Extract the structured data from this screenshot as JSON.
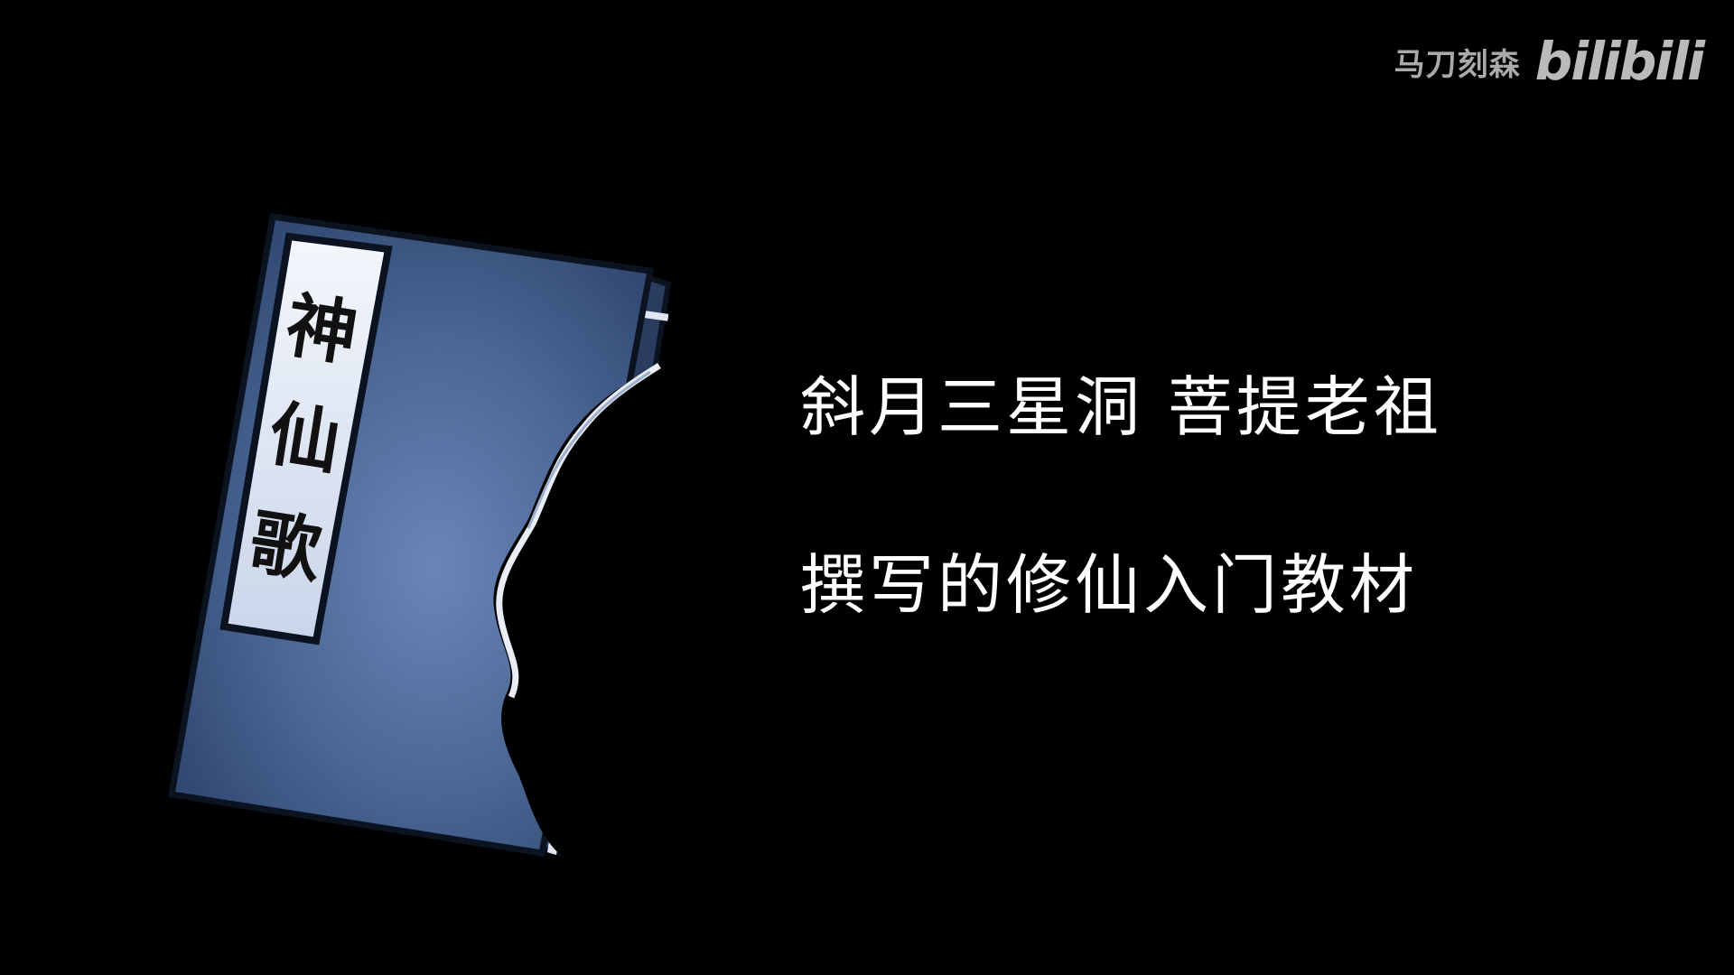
{
  "watermark": {
    "author": "马刀刻森",
    "logo": "bilibili"
  },
  "book": {
    "title_chars": [
      "神",
      "仙",
      "歌"
    ],
    "cover_color": "#3f5b88",
    "label_color": "#e6ebf5"
  },
  "captions": {
    "line1": "斜月三星洞 菩提老祖",
    "line2": "撰写的修仙入门教材"
  }
}
